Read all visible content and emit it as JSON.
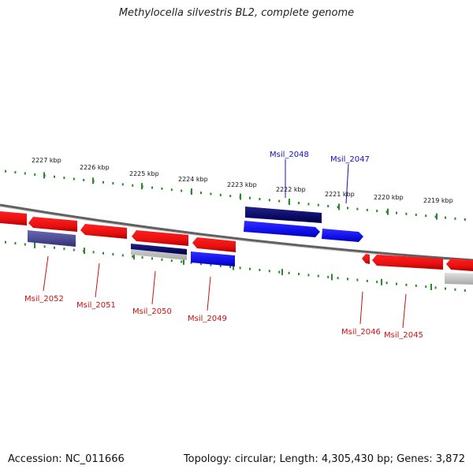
{
  "title": "Methylocella silvestris BL2, complete genome",
  "footer": {
    "accession": "Accession: NC_011666",
    "summary": "Topology: circular; Length: 4,305,430 bp; Genes: 3,872"
  },
  "colors": {
    "forward_gene": "#1010ee",
    "reverse_gene": "#ee1010",
    "forward_label": "#1010c0",
    "reverse_label": "#cc1010",
    "tick": "#2a8a2a",
    "backbone": "#808080"
  },
  "scale": {
    "unit": "kbp",
    "ticks": [
      "2227 kbp",
      "2226 kbp",
      "2225 kbp",
      "2224 kbp",
      "2223 kbp",
      "2222 kbp",
      "2221 kbp",
      "2220 kbp",
      "2219 kbp"
    ]
  },
  "genes": [
    {
      "id": "Msil_2048",
      "strand": "forward"
    },
    {
      "id": "Msil_2047",
      "strand": "forward"
    },
    {
      "id": "Msil_2052",
      "strand": "reverse"
    },
    {
      "id": "Msil_2051",
      "strand": "reverse"
    },
    {
      "id": "Msil_2050",
      "strand": "reverse"
    },
    {
      "id": "Msil_2049",
      "strand": "reverse"
    },
    {
      "id": "Msil_2046",
      "strand": "reverse"
    },
    {
      "id": "Msil_2045",
      "strand": "reverse"
    }
  ]
}
